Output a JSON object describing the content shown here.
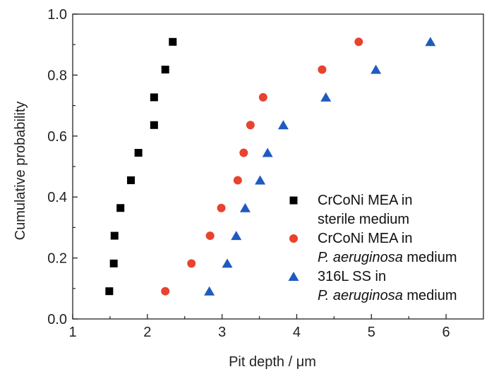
{
  "chart_data": {
    "type": "scatter",
    "title": "",
    "xlabel_prefix": "Pit depth / ",
    "xlabel_unit": "μm",
    "ylabel": "Cumulative probability",
    "xlim": [
      1,
      6.5
    ],
    "ylim": [
      0,
      1.0
    ],
    "xticks": [
      "1",
      "2",
      "3",
      "4",
      "5",
      "6"
    ],
    "yticks": [
      "0.0",
      "0.2",
      "0.4",
      "0.6",
      "0.8",
      "1.0"
    ],
    "grid": false,
    "legend_position": "lower-right",
    "series": [
      {
        "name": "CrCoNi MEA in sterile medium",
        "legend_lines": [
          [
            {
              "t": "CrCoNi MEA in",
              "i": false
            }
          ],
          [
            {
              "t": "sterile medium",
              "i": false
            }
          ]
        ],
        "marker": "square",
        "color": "#000000",
        "points": [
          [
            1.49,
            0.091
          ],
          [
            1.55,
            0.182
          ],
          [
            1.56,
            0.273
          ],
          [
            1.64,
            0.364
          ],
          [
            1.78,
            0.455
          ],
          [
            1.88,
            0.545
          ],
          [
            2.09,
            0.636
          ],
          [
            2.09,
            0.727
          ],
          [
            2.24,
            0.818
          ],
          [
            2.34,
            0.909
          ]
        ]
      },
      {
        "name": "CrCoNi MEA in P. aeruginosa medium",
        "legend_lines": [
          [
            {
              "t": "CrCoNi MEA in",
              "i": false
            }
          ],
          [
            {
              "t": "P. aeruginosa",
              "i": true
            },
            {
              "t": " medium",
              "i": false
            }
          ]
        ],
        "marker": "circle",
        "color": "#e8432e",
        "points": [
          [
            2.24,
            0.091
          ],
          [
            2.59,
            0.182
          ],
          [
            2.84,
            0.273
          ],
          [
            2.99,
            0.364
          ],
          [
            3.21,
            0.455
          ],
          [
            3.29,
            0.545
          ],
          [
            3.38,
            0.636
          ],
          [
            3.55,
            0.727
          ],
          [
            4.34,
            0.818
          ],
          [
            4.83,
            0.909
          ]
        ]
      },
      {
        "name": "316L SS in P. aeruginosa medium",
        "legend_lines": [
          [
            {
              "t": "316L SS in",
              "i": false
            }
          ],
          [
            {
              "t": "P. aeruginosa",
              "i": true
            },
            {
              "t": " medium",
              "i": false
            }
          ]
        ],
        "marker": "triangle",
        "color": "#1f5bbf",
        "points": [
          [
            2.83,
            0.091
          ],
          [
            3.07,
            0.182
          ],
          [
            3.19,
            0.273
          ],
          [
            3.31,
            0.364
          ],
          [
            3.51,
            0.455
          ],
          [
            3.61,
            0.545
          ],
          [
            3.82,
            0.636
          ],
          [
            4.39,
            0.727
          ],
          [
            5.06,
            0.818
          ],
          [
            5.79,
            0.909
          ]
        ]
      }
    ]
  }
}
